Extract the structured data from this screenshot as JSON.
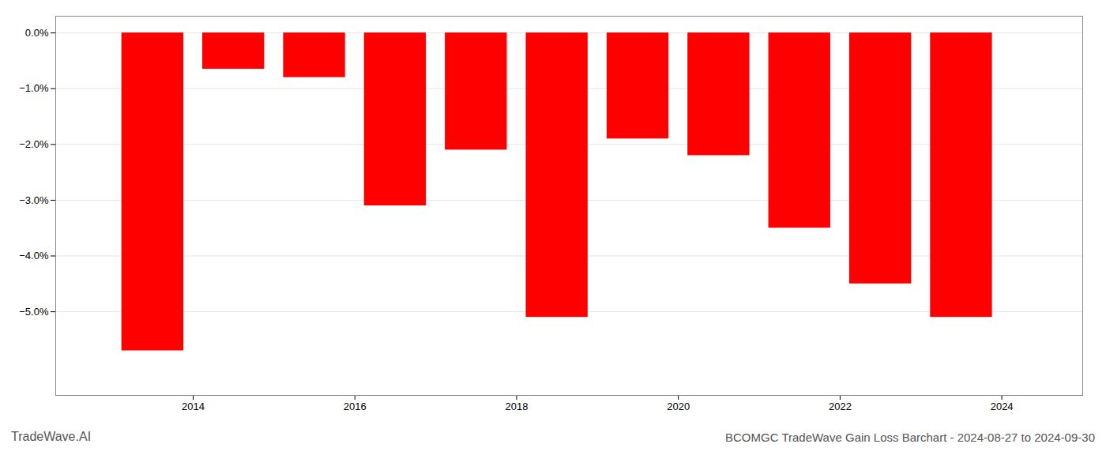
{
  "chart_data": {
    "type": "bar",
    "title": "BCOMGC TradeWave Gain Loss Barchart - 2024-08-27 to 2024-09-30",
    "annotations": [
      "TradeWave.AI"
    ],
    "x": [
      2013,
      2014,
      2015,
      2016,
      2017,
      2018,
      2019,
      2020,
      2021,
      2022,
      2023
    ],
    "values": [
      -0.057,
      -0.0065,
      -0.008,
      -0.031,
      -0.021,
      -0.051,
      -0.019,
      -0.022,
      -0.035,
      -0.045,
      -0.051
    ],
    "color": "#ff0000",
    "xlim": [
      2012.3,
      2025.0
    ],
    "xticks": [
      2014,
      2016,
      2018,
      2020,
      2022,
      2024
    ],
    "ylim": [
      -0.065,
      0.003
    ],
    "yticks": [
      {
        "value": 0.0,
        "label": "0.0%"
      },
      {
        "value": -0.01,
        "label": "−1.0%"
      },
      {
        "value": -0.02,
        "label": "−2.0%"
      },
      {
        "value": -0.03,
        "label": "−3.0%"
      },
      {
        "value": -0.04,
        "label": "−4.0%"
      },
      {
        "value": -0.05,
        "label": "−5.0%"
      }
    ],
    "grid": true
  }
}
